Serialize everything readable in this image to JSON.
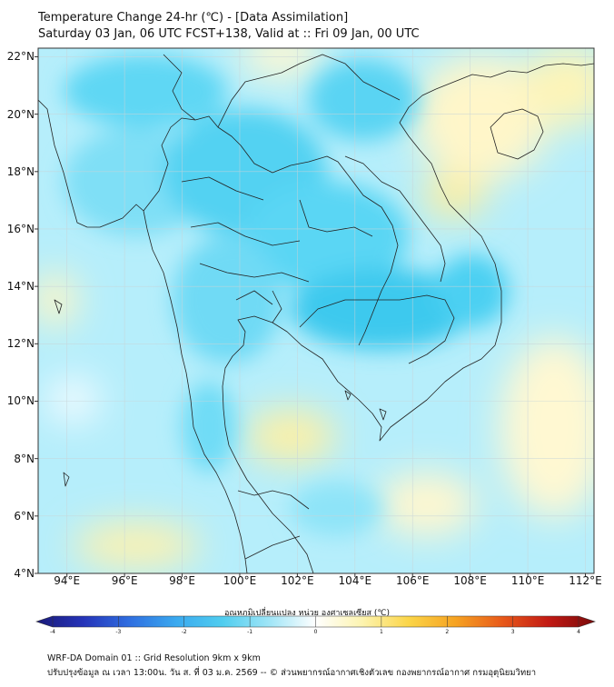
{
  "header": {
    "title_line1": "Temperature Change 24-hr (℃) - [Data Assimilation]",
    "title_line2": "Saturday 03 Jan, 06 UTC FCST+138, Valid at :: Fri 09 Jan, 00 UTC"
  },
  "map": {
    "lat_labels": [
      "22°N",
      "20°N",
      "18°N",
      "16°N",
      "14°N",
      "12°N",
      "10°N",
      "8°N",
      "6°N",
      "4°N"
    ],
    "lon_labels": [
      "94°E",
      "96°E",
      "98°E",
      "100°E",
      "102°E",
      "104°E",
      "106°E",
      "108°E",
      "110°E",
      "112°E"
    ],
    "lat_range": [
      4,
      22.3
    ],
    "lon_range": [
      93,
      112.3
    ],
    "colors": {
      "cold_strong": "#34c8ec",
      "cold": "#5ad6f4",
      "cold_light": "#9fe7fa",
      "neutral": "#eefbff",
      "warm_light": "#fdf7c6",
      "warm": "#fcee9a",
      "land_border": "#222222"
    }
  },
  "colorbar": {
    "title": "อุณหภูมิเปลี่ยนแปลง หน่วย องศาเซลเซียส (℃)",
    "ticks": [
      "-4",
      "-3",
      "-2",
      "-1",
      "0",
      "1",
      "2",
      "3",
      "4"
    ],
    "min": -4,
    "max": 4,
    "stops": [
      "#1a1a78",
      "#2533b8",
      "#2f6ee0",
      "#3aa9ef",
      "#50cdef",
      "#9fe5f7",
      "#ffffff",
      "#fdf4b0",
      "#fbd548",
      "#f6a322",
      "#e85a1a",
      "#c21a14",
      "#7a0a0a"
    ]
  },
  "footer": {
    "line1": "WRF-DA Domain 01 :: Grid Resolution 9km x 9km",
    "line2": "ปรับปรุงข้อมูล ณ เวลา 13:00น. วัน ส. ที่ 03 ม.ค. 2569 -- © ส่วนพยากรณ์อากาศเชิงตัวเลข กองพยากรณ์อากาศ กรมอุตุนิยมวิทยา"
  }
}
